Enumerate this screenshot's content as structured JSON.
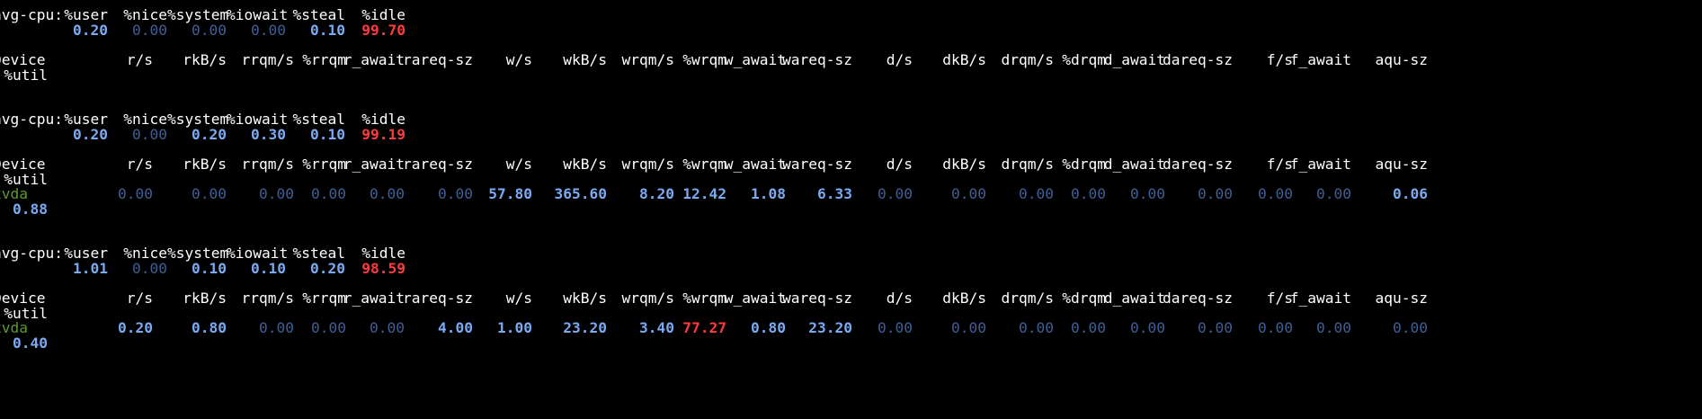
{
  "reports": [
    {
      "cpu": {
        "label": "avg-cpu:",
        "headers": [
          "%user",
          "%nice",
          "%system",
          "%iowait",
          "%steal",
          "%idle"
        ],
        "values": [
          "0.20",
          "0.00",
          "0.00",
          "0.00",
          "0.10",
          "99.70"
        ]
      },
      "device_header": {
        "label": "Device",
        "columns": [
          "r/s",
          "rkB/s",
          "rrqm/s",
          "%rrqm",
          "r_await",
          "rareq-sz",
          "w/s",
          "wkB/s",
          "wrqm/s",
          "%wrqm",
          "w_await",
          "wareq-sz",
          "d/s",
          "dkB/s",
          "drqm/s",
          "%drqm",
          "d_await",
          "dareq-sz",
          "f/s",
          "f_await",
          "aqu-sz"
        ],
        "wrap_column": "%util"
      },
      "devices": []
    },
    {
      "cpu": {
        "label": "avg-cpu:",
        "headers": [
          "%user",
          "%nice",
          "%system",
          "%iowait",
          "%steal",
          "%idle"
        ],
        "values": [
          "0.20",
          "0.00",
          "0.20",
          "0.30",
          "0.10",
          "99.19"
        ]
      },
      "device_header": {
        "label": "Device",
        "columns": [
          "r/s",
          "rkB/s",
          "rrqm/s",
          "%rrqm",
          "r_await",
          "rareq-sz",
          "w/s",
          "wkB/s",
          "wrqm/s",
          "%wrqm",
          "w_await",
          "wareq-sz",
          "d/s",
          "dkB/s",
          "drqm/s",
          "%drqm",
          "d_await",
          "dareq-sz",
          "f/s",
          "f_await",
          "aqu-sz"
        ],
        "wrap_column": "%util"
      },
      "devices": [
        {
          "name": "xvda",
          "values": [
            "0.00",
            "0.00",
            "0.00",
            "0.00",
            "0.00",
            "0.00",
            "57.80",
            "365.60",
            "8.20",
            "12.42",
            "1.08",
            "6.33",
            "0.00",
            "0.00",
            "0.00",
            "0.00",
            "0.00",
            "0.00",
            "0.00",
            "0.00",
            "0.06"
          ],
          "util": "0.88"
        }
      ]
    },
    {
      "cpu": {
        "label": "avg-cpu:",
        "headers": [
          "%user",
          "%nice",
          "%system",
          "%iowait",
          "%steal",
          "%idle"
        ],
        "values": [
          "1.01",
          "0.00",
          "0.10",
          "0.10",
          "0.20",
          "98.59"
        ]
      },
      "device_header": {
        "label": "Device",
        "columns": [
          "r/s",
          "rkB/s",
          "rrqm/s",
          "%rrqm",
          "r_await",
          "rareq-sz",
          "w/s",
          "wkB/s",
          "wrqm/s",
          "%wrqm",
          "w_await",
          "wareq-sz",
          "d/s",
          "dkB/s",
          "drqm/s",
          "%drqm",
          "d_await",
          "dareq-sz",
          "f/s",
          "f_await",
          "aqu-sz"
        ],
        "wrap_column": "%util"
      },
      "devices": [
        {
          "name": "xvda",
          "values": [
            "0.20",
            "0.80",
            "0.00",
            "0.00",
            "0.00",
            "4.00",
            "1.00",
            "23.20",
            "3.40",
            "77.27",
            "0.80",
            "23.20",
            "0.00",
            "0.00",
            "0.00",
            "0.00",
            "0.00",
            "0.00",
            "0.00",
            "0.00",
            "0.00"
          ],
          "util": "0.40"
        }
      ]
    }
  ],
  "colors": {
    "background": "#000000",
    "text": "#ffffff",
    "value_bright": "#7aaaf2",
    "value_zero": "#3f5f96",
    "value_hot": "#ff3b3b",
    "device_name": "#5a9a2e"
  }
}
